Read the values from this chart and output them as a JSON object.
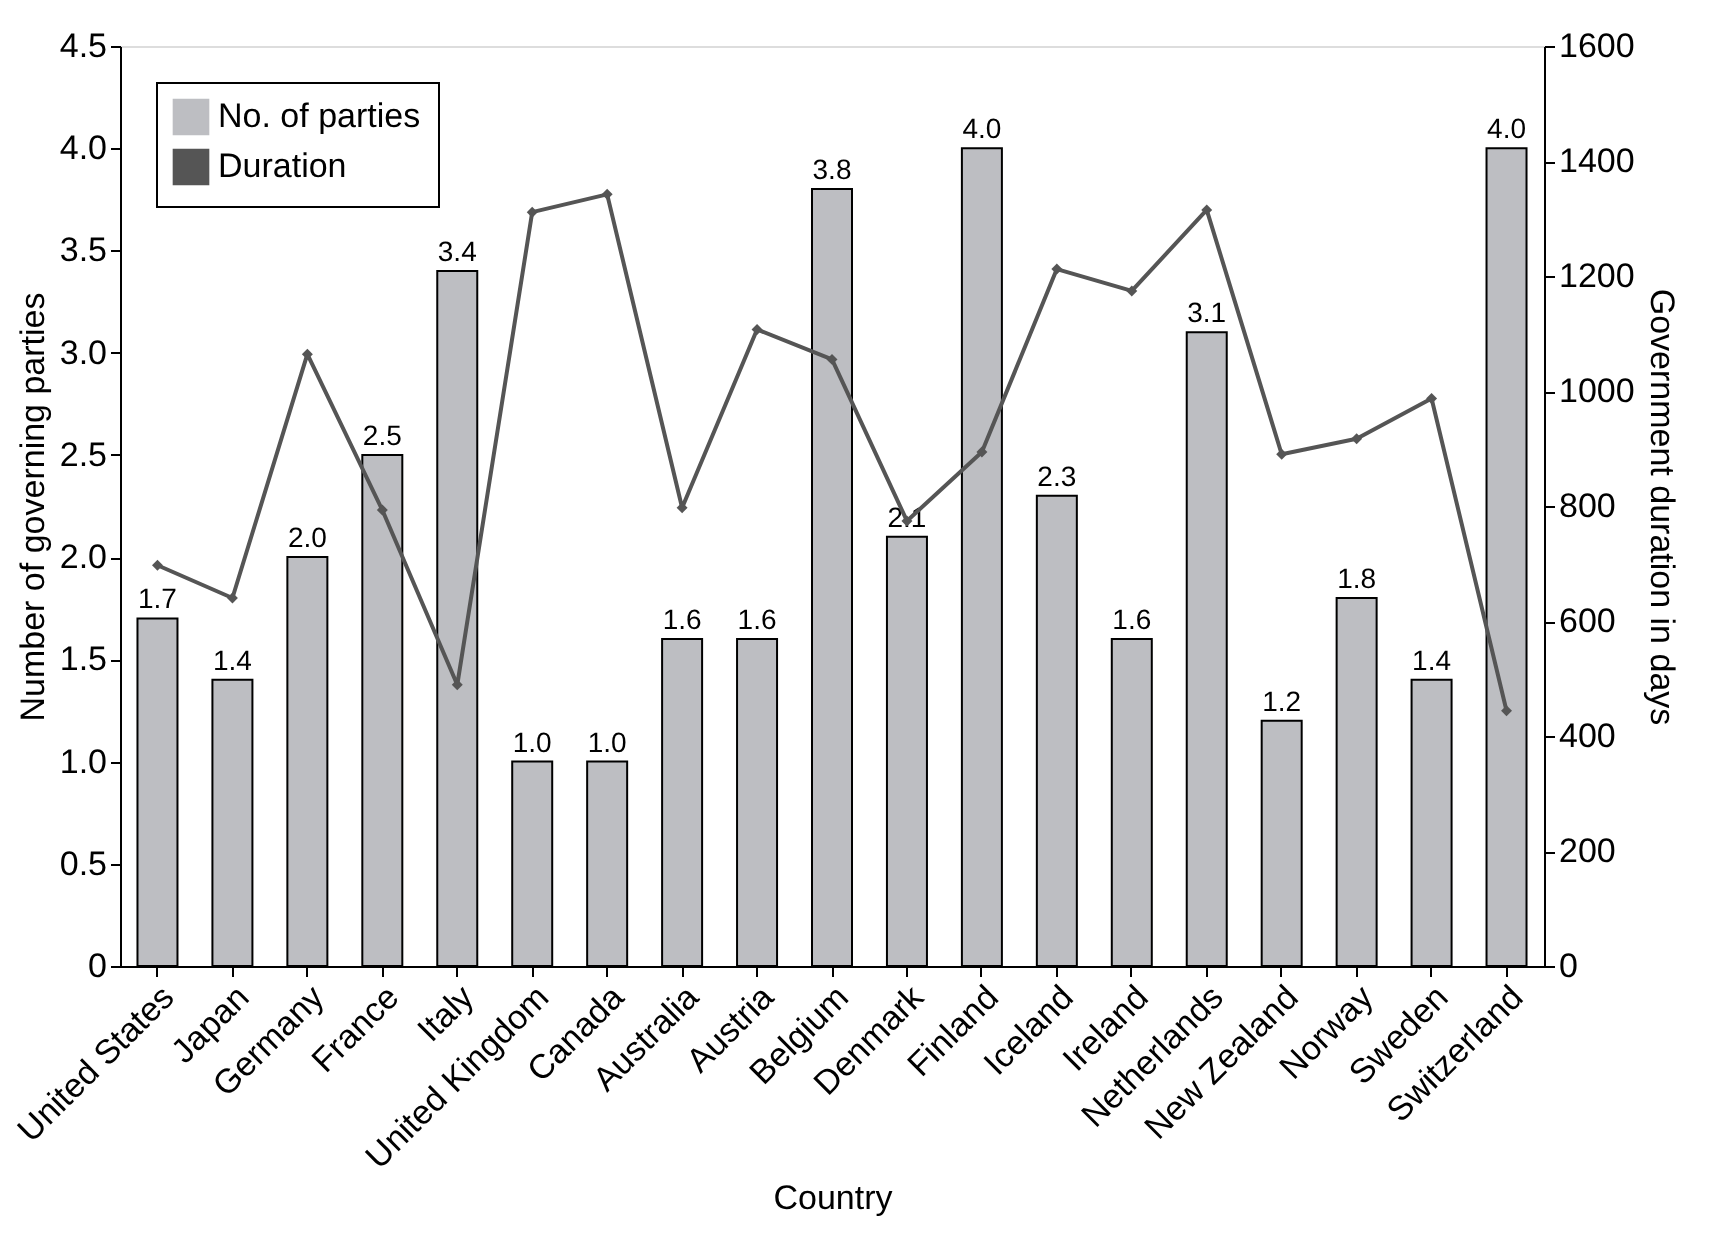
{
  "chart_data": {
    "type": "bar",
    "xlabel": "Country",
    "ylabel": "Number of governing parties",
    "y2label": "Government duration in days",
    "categories": [
      "United States",
      "Japan",
      "Germany",
      "France",
      "Italy",
      "United Kingdom",
      "Canada",
      "Australia",
      "Austria",
      "Belgium",
      "Denmark",
      "Finland",
      "Iceland",
      "Ireland",
      "Netherlands",
      "New Zealand",
      "Norway",
      "Sweden",
      "Switzerland"
    ],
    "series": [
      {
        "name": "No. of parties",
        "color": "#bdbec2",
        "values": [
          1.7,
          1.4,
          2.0,
          2.5,
          3.4,
          1.0,
          1.0,
          1.6,
          1.6,
          3.8,
          2.1,
          4.0,
          2.3,
          1.6,
          3.1,
          1.2,
          1.8,
          1.4,
          4.0
        ],
        "value_labels": [
          "1.7",
          "1.4",
          "2.0",
          "2.5",
          "3.4",
          "1.0",
          "1.0",
          "1.6",
          "1.6",
          "3.8",
          "2.1",
          "4.0",
          "2.3",
          "1.6",
          "3.1",
          "1.2",
          "1.8",
          "1.4",
          "4.0"
        ]
      },
      {
        "name": "Duration",
        "type": "line",
        "axis": "y2",
        "color": "#555555",
        "marker": "diamond",
        "values": [
          697,
          640,
          1064,
          793,
          489,
          1311,
          1342,
          797,
          1107,
          1055,
          774,
          894,
          1212,
          1174,
          1315,
          890,
          917,
          987,
          444
        ]
      }
    ],
    "ylim": [
      0,
      4.5
    ],
    "yticks": [
      0,
      0.5,
      {
        "value": 1,
        "label": "1.0"
      },
      1.5,
      {
        "value": 2,
        "label": "2.0"
      },
      2.5,
      {
        "value": 3,
        "label": "3.0"
      },
      3.5,
      {
        "value": 4,
        "label": "4.0"
      },
      4.5
    ],
    "y2lim": [
      0,
      1600
    ],
    "y2ticks": [
      0,
      200,
      400,
      600,
      800,
      1000,
      1200,
      1400,
      1600
    ],
    "legend": "top left",
    "grid": false
  }
}
